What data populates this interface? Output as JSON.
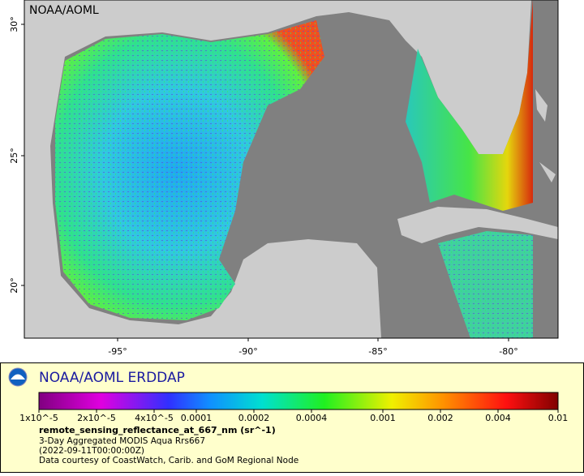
{
  "map": {
    "attribution": "NOAA/AOML",
    "lat_labels": [
      "30°",
      "25°",
      "20°"
    ],
    "lon_labels": [
      "-95°",
      "-90°",
      "-85°",
      "-80°"
    ]
  },
  "legend": {
    "title": "NOAA/AOML ERDDAP",
    "scale_labels": [
      "1x10^-5",
      "2x10^-5",
      "4x10^-5",
      "0.0001",
      "0.0002",
      "0.0004",
      "0.001",
      "0.002",
      "0.004",
      "0.01"
    ],
    "variable": "remote_sensing_reflectance_at_667_nm (sr^-1)",
    "lines": [
      "3-Day Aggregated MODIS Aqua Rrs667",
      "(2022-09-11T00:00:00Z)",
      "Data courtesy of CoastWatch, Carib. and GoM Regional Node"
    ]
  }
}
